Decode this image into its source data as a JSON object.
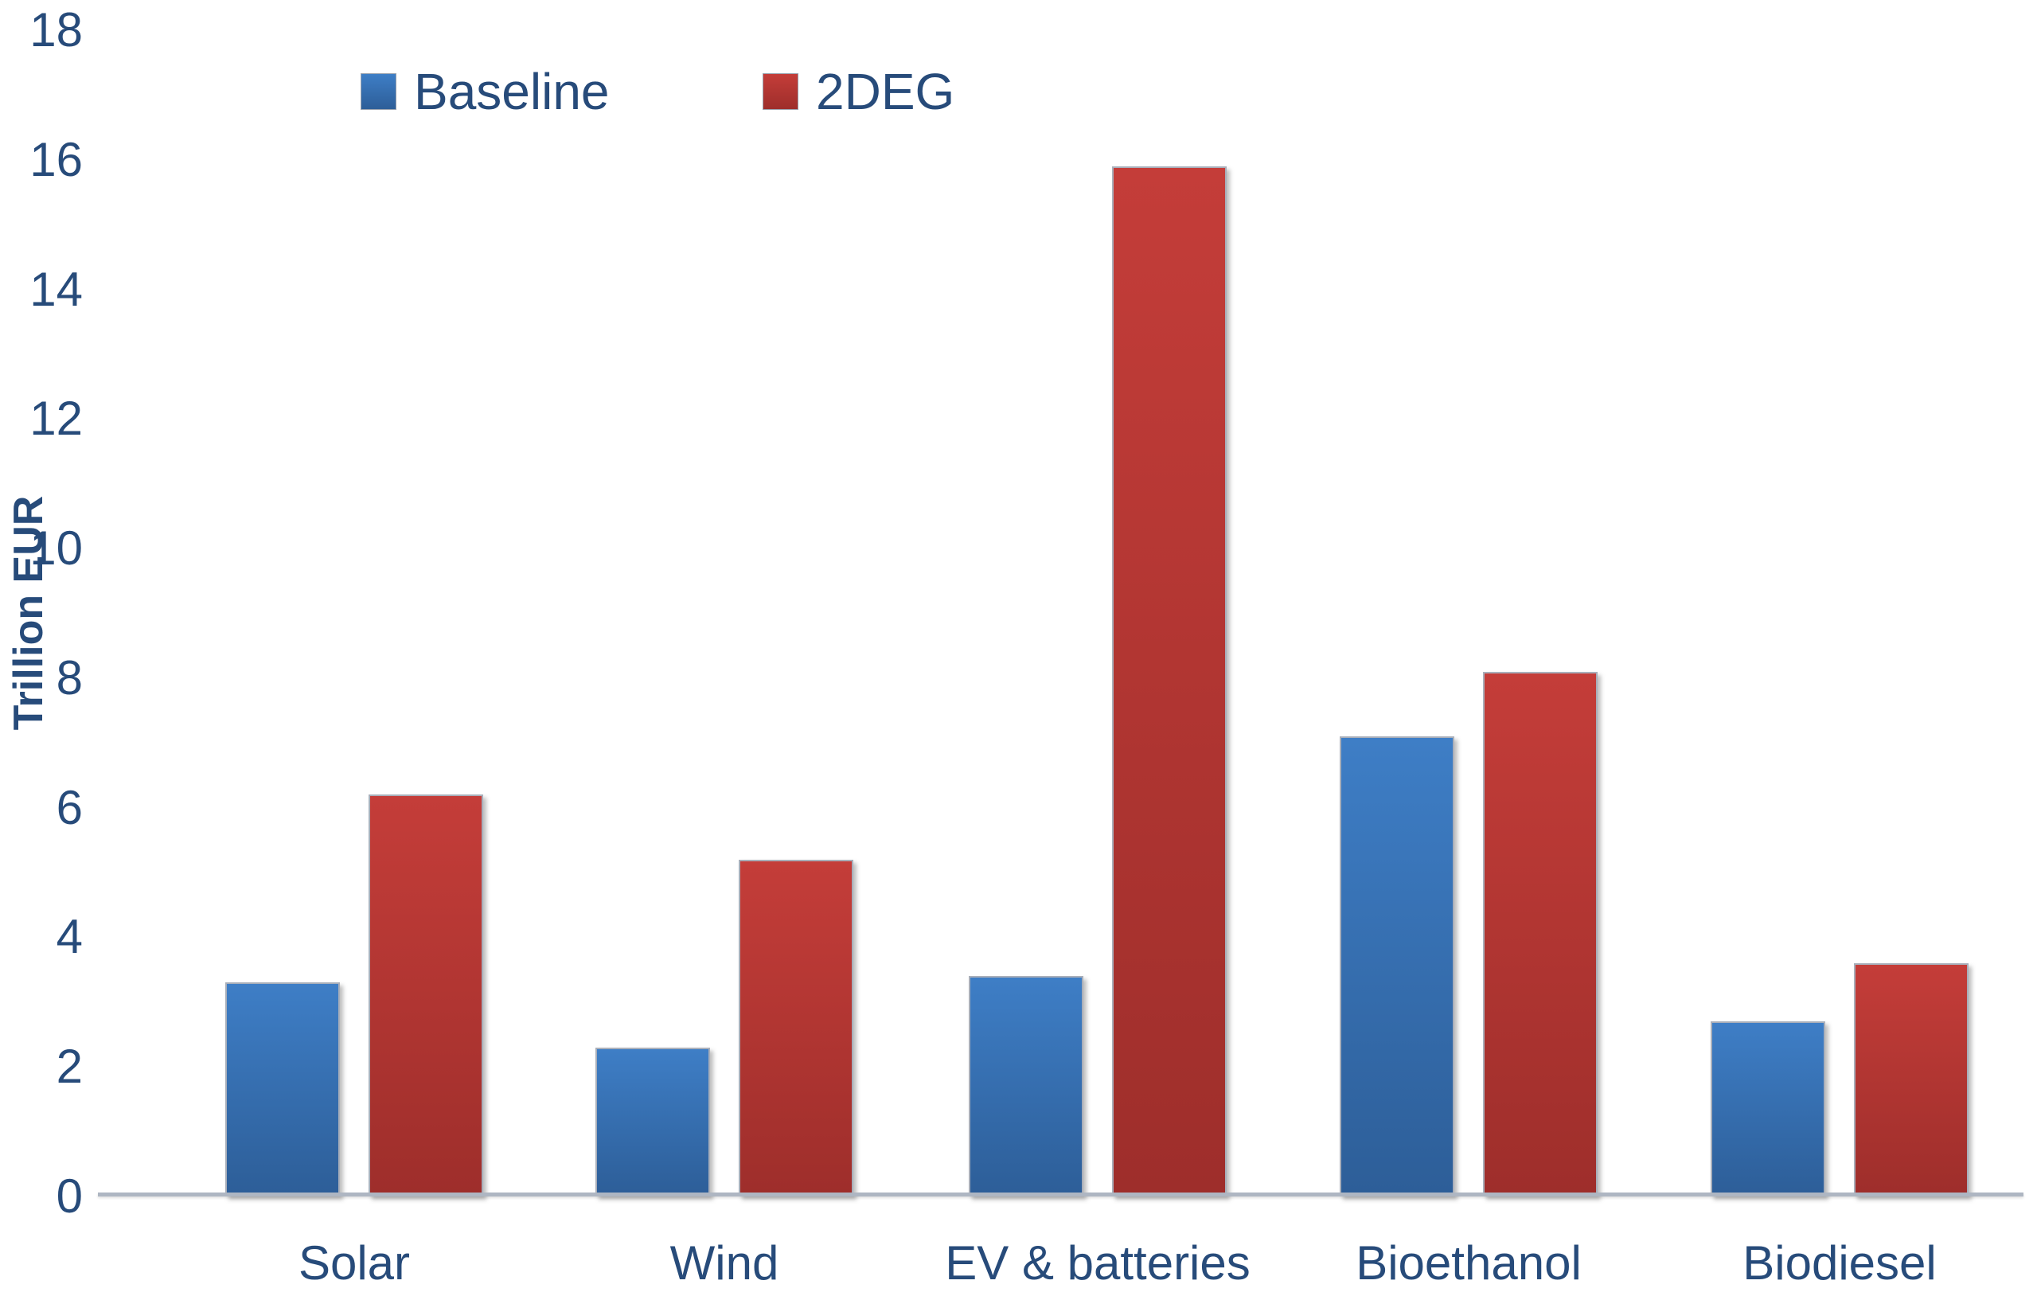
{
  "chart_data": {
    "type": "bar",
    "title": "",
    "xlabel": "",
    "ylabel": "Trillion EUR",
    "categories": [
      "Solar",
      "Wind",
      "EV & batteries",
      "Bioethanol",
      "Biodiesel"
    ],
    "series": [
      {
        "name": "Baseline",
        "values": [
          3.3,
          2.3,
          3.4,
          7.1,
          2.7
        ],
        "color_top": "#3E7EC6",
        "color_bottom": "#2D5E98",
        "legend_color": "#3B78BF"
      },
      {
        "name": "2DEG",
        "values": [
          6.2,
          5.2,
          15.9,
          8.1,
          3.6
        ],
        "color_top": "#C43D39",
        "color_bottom": "#9E2E2B",
        "legend_color": "#BE3A37"
      }
    ],
    "y_axis": {
      "min": 0,
      "max": 18,
      "step": 2,
      "ticks": [
        0,
        2,
        4,
        6,
        8,
        10,
        12,
        14,
        16,
        18
      ]
    },
    "legend_position": "top",
    "grid": false
  },
  "colors": {
    "text": "#274B7A",
    "axis_line": "#AEB6C2",
    "background": "#FFFFFF"
  }
}
